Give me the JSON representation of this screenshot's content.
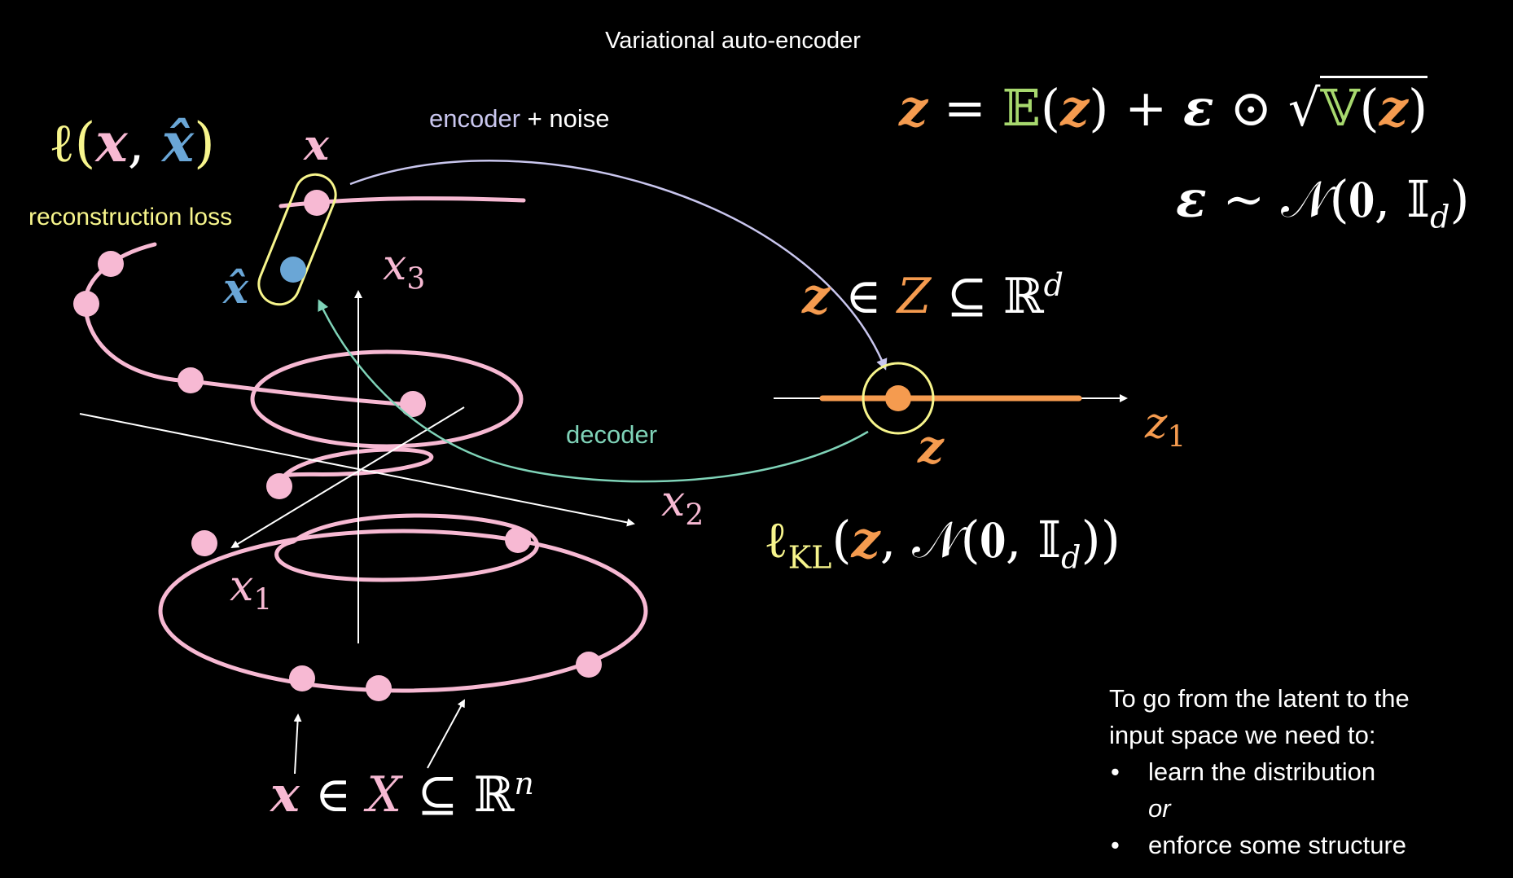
{
  "title": "Variational auto-encoder",
  "labels": {
    "encoder": "encoder",
    "noise_suffix": " + noise",
    "decoder": "decoder",
    "reconstruction_loss": "reconstruction loss"
  },
  "math": {
    "loss_prefix": "ℓ(",
    "loss_x": "x",
    "loss_sep": ", ",
    "loss_xhat": "x̂",
    "loss_close": ")",
    "x_point": "x",
    "xhat_point": "x̂",
    "x1": "x",
    "x1_sub": "1",
    "x2": "x",
    "x2_sub": "2",
    "x3": "x",
    "x3_sub": "3",
    "z1": "z",
    "z1_sub": "1",
    "z_point": "z",
    "latent_set": {
      "z": "z",
      "rel": " ∈ ",
      "Z": "Z",
      "rest": " ⊆ ℝ",
      "sup": "d"
    },
    "input_set": {
      "x": "x",
      "rel": " ∈ ",
      "X": "X",
      "rest": " ⊆ ℝ",
      "sup": "n"
    },
    "kl": {
      "l": "ℓ",
      "sub": "KL",
      "open": "(",
      "z": "z",
      "rest": ", 𝒩(𝟎, 𝕀",
      "dsub": "d",
      "close": "))"
    },
    "reparam": {
      "z": "z",
      "eq": " = ",
      "E": "𝔼",
      "open1": "(",
      "z2": "z",
      "close1": ")",
      "plus": " + ",
      "eps": "ε",
      "odot": " ⊙ √",
      "V": "𝕍",
      "open2": "(",
      "z3": "z",
      "close2": ")"
    },
    "noise_dist": {
      "eps": "ε",
      "rest": " ∼ 𝒩(𝟎, 𝕀",
      "sub": "d",
      "close": ")"
    }
  },
  "note": {
    "line1": "To go from the latent to the",
    "line2": "input space we need to:",
    "bullet": "•",
    "item1": "learn the distribution",
    "or": "or",
    "item2": "enforce some structure"
  },
  "colors": {
    "background": "#000000",
    "pink": "#f7b9d3",
    "blue": "#6aa6d6",
    "orange": "#f59b4f",
    "yellow": "#f7f58c",
    "green": "#a7d86e",
    "lavender": "#c9c6ee",
    "teal": "#7fd3b8",
    "white": "#ffffff"
  }
}
